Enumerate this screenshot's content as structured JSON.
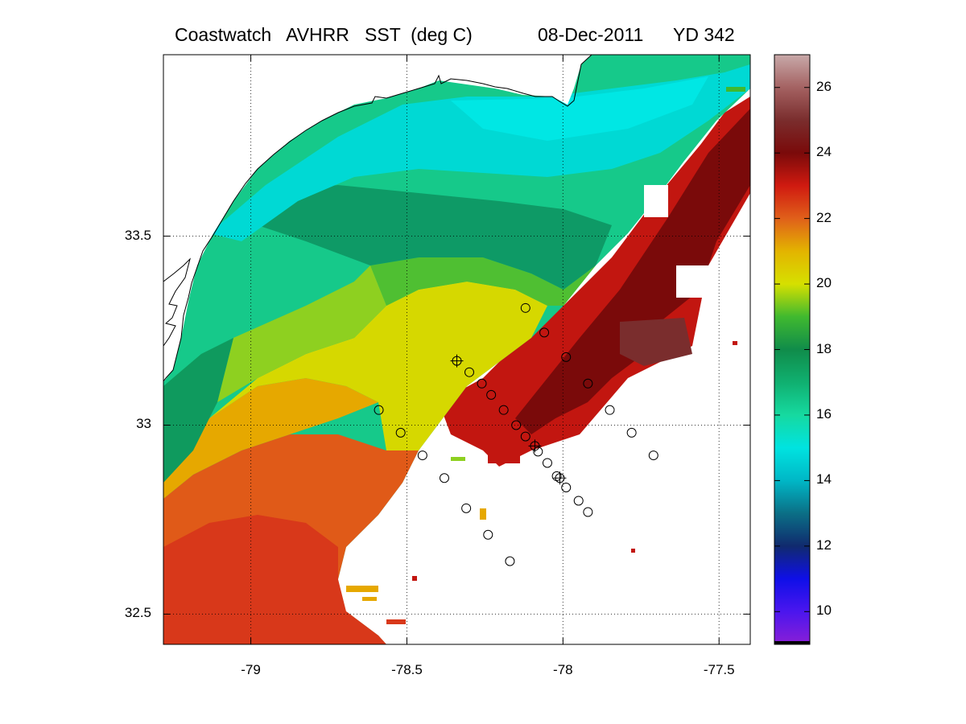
{
  "header": {
    "title_left": "Coastwatch   AVHRR   SST  (deg C)",
    "date": "08-Dec-2011",
    "yearday": "YD 342"
  },
  "map": {
    "lon_range": [
      -79.28,
      -77.4
    ],
    "lat_range": [
      32.42,
      33.98
    ],
    "x_ticks": [
      {
        "value": -79,
        "label": "-79"
      },
      {
        "value": -78.5,
        "label": "-78.5"
      },
      {
        "value": -78,
        "label": "-78"
      },
      {
        "value": -77.5,
        "label": "-77.5"
      }
    ],
    "y_ticks": [
      {
        "value": 33.5,
        "label": "33.5"
      },
      {
        "value": 33,
        "label": "33"
      },
      {
        "value": 32.5,
        "label": "32.5"
      }
    ],
    "grid": "dotted",
    "land_color": "#ffffff",
    "coastline_color": "#000000"
  },
  "colorbar": {
    "range": [
      9,
      27
    ],
    "ticks": [
      {
        "value": 10,
        "label": "10"
      },
      {
        "value": 12,
        "label": "12"
      },
      {
        "value": 14,
        "label": "14"
      },
      {
        "value": 16,
        "label": "16"
      },
      {
        "value": 18,
        "label": "18"
      },
      {
        "value": 20,
        "label": "20"
      },
      {
        "value": 22,
        "label": "22"
      },
      {
        "value": 24,
        "label": "24"
      },
      {
        "value": 26,
        "label": "26"
      }
    ],
    "stops": [
      {
        "v": 9,
        "c": "#8a1fd6"
      },
      {
        "v": 10,
        "c": "#4b16ee"
      },
      {
        "v": 11,
        "c": "#0f0fe8"
      },
      {
        "v": 12,
        "c": "#102a6e"
      },
      {
        "v": 13,
        "c": "#0b6f86"
      },
      {
        "v": 14,
        "c": "#00b7c6"
      },
      {
        "v": 15,
        "c": "#00e3e0"
      },
      {
        "v": 16,
        "c": "#16d9a0"
      },
      {
        "v": 17,
        "c": "#10b070"
      },
      {
        "v": 18,
        "c": "#108c4a"
      },
      {
        "v": 19,
        "c": "#40b92f"
      },
      {
        "v": 20,
        "c": "#d6e000"
      },
      {
        "v": 21,
        "c": "#e3b400"
      },
      {
        "v": 22,
        "c": "#e0601a"
      },
      {
        "v": 23,
        "c": "#d01a10"
      },
      {
        "v": 24,
        "c": "#7a0a0a"
      },
      {
        "v": 25,
        "c": "#7a2d2d"
      },
      {
        "v": 26,
        "c": "#a46262"
      },
      {
        "v": 27,
        "c": "#c8a9a9"
      }
    ]
  },
  "stations": [
    {
      "lon": -78.12,
      "lat": 33.31,
      "type": "circle"
    },
    {
      "lon": -78.06,
      "lat": 33.245,
      "type": "circle"
    },
    {
      "lon": -77.99,
      "lat": 33.18,
      "type": "circle"
    },
    {
      "lon": -78.34,
      "lat": 33.17,
      "type": "circle-cross"
    },
    {
      "lon": -78.3,
      "lat": 33.14,
      "type": "circle"
    },
    {
      "lon": -78.26,
      "lat": 33.11,
      "type": "circle"
    },
    {
      "lon": -78.23,
      "lat": 33.08,
      "type": "circle"
    },
    {
      "lon": -77.92,
      "lat": 33.11,
      "type": "circle"
    },
    {
      "lon": -78.19,
      "lat": 33.04,
      "type": "circle"
    },
    {
      "lon": -78.15,
      "lat": 33.0,
      "type": "circle"
    },
    {
      "lon": -78.12,
      "lat": 32.97,
      "type": "circle"
    },
    {
      "lon": -78.09,
      "lat": 32.945,
      "type": "circle-cross"
    },
    {
      "lon": -78.08,
      "lat": 32.93,
      "type": "circle"
    },
    {
      "lon": -78.05,
      "lat": 32.9,
      "type": "circle"
    },
    {
      "lon": -78.02,
      "lat": 32.865,
      "type": "circle"
    },
    {
      "lon": -78.01,
      "lat": 32.86,
      "type": "circle-cross"
    },
    {
      "lon": -77.99,
      "lat": 32.835,
      "type": "circle"
    },
    {
      "lon": -77.95,
      "lat": 32.8,
      "type": "circle"
    },
    {
      "lon": -77.92,
      "lat": 32.77,
      "type": "circle"
    },
    {
      "lon": -77.85,
      "lat": 33.04,
      "type": "circle"
    },
    {
      "lon": -77.78,
      "lat": 32.98,
      "type": "circle"
    },
    {
      "lon": -77.71,
      "lat": 32.92,
      "type": "circle"
    },
    {
      "lon": -78.59,
      "lat": 33.04,
      "type": "circle"
    },
    {
      "lon": -78.52,
      "lat": 32.98,
      "type": "circle"
    },
    {
      "lon": -78.45,
      "lat": 32.92,
      "type": "circle"
    },
    {
      "lon": -78.38,
      "lat": 32.86,
      "type": "circle"
    },
    {
      "lon": -78.31,
      "lat": 32.78,
      "type": "circle"
    },
    {
      "lon": -78.24,
      "lat": 32.71,
      "type": "circle"
    },
    {
      "lon": -78.17,
      "lat": 32.64,
      "type": "circle"
    }
  ]
}
